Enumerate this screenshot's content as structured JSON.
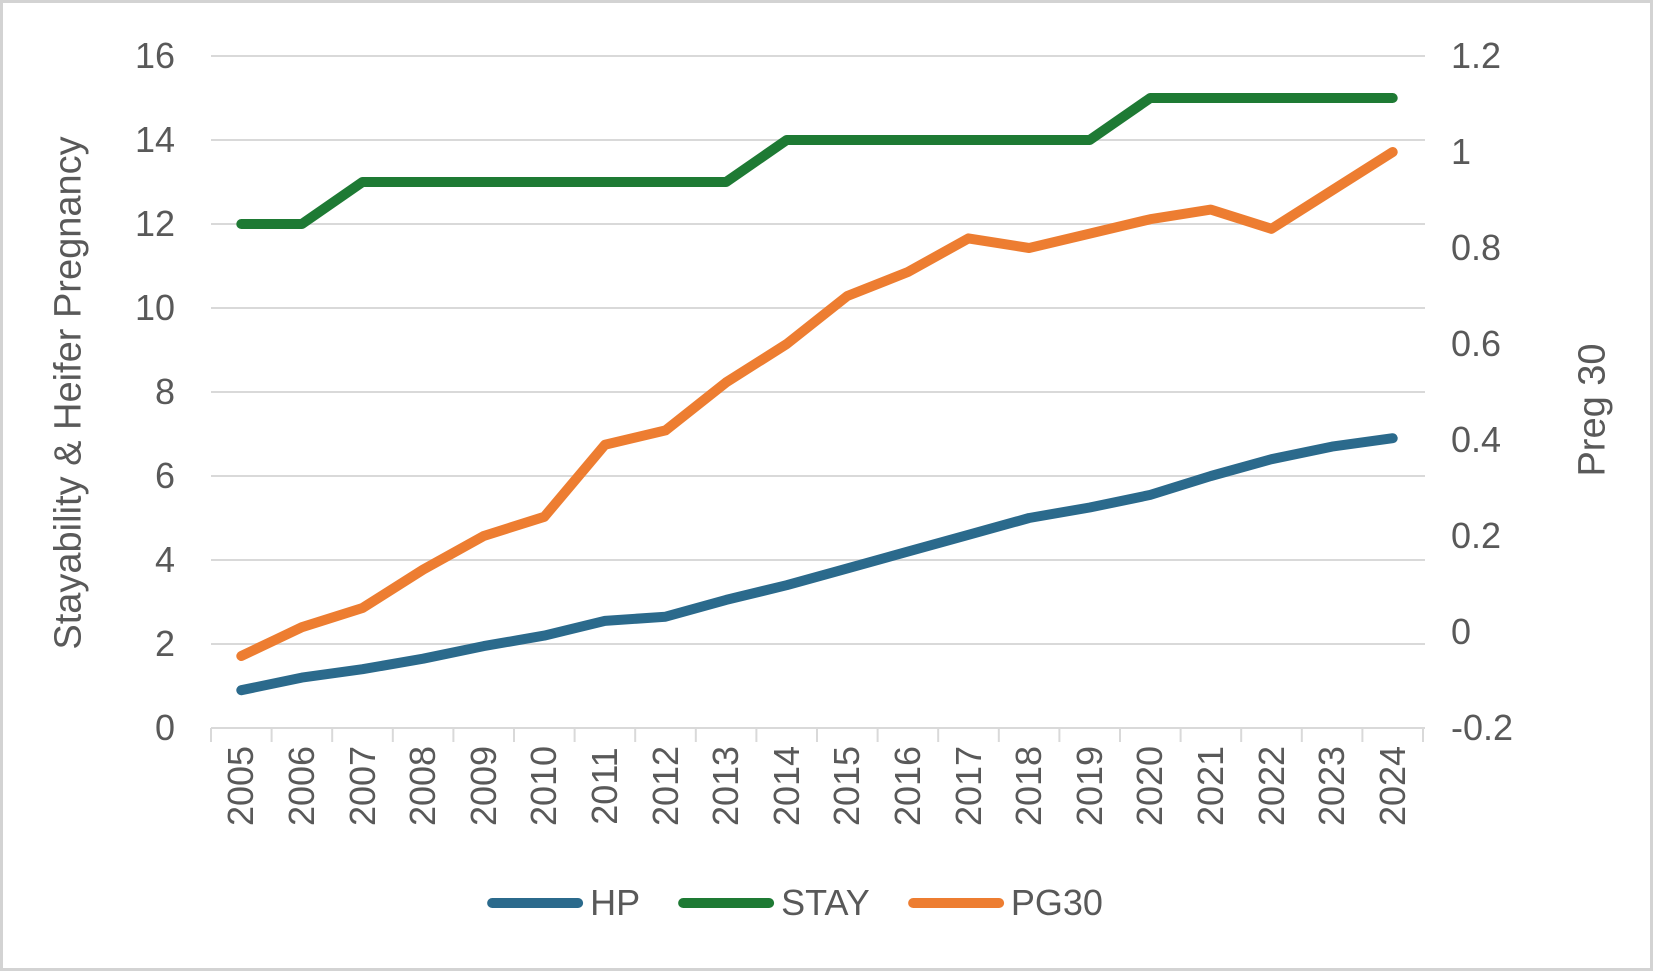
{
  "chart_data": {
    "type": "line",
    "title": "",
    "categories": [
      "2005",
      "2006",
      "2007",
      "2008",
      "2009",
      "2010",
      "2011",
      "2012",
      "2013",
      "2014",
      "2015",
      "2016",
      "2017",
      "2018",
      "2019",
      "2020",
      "2021",
      "2022",
      "2023",
      "2024"
    ],
    "series": [
      {
        "name": "HP",
        "yaxis": "left",
        "color": "#2B6A8C",
        "values": [
          0.9,
          1.2,
          1.4,
          1.65,
          1.95,
          2.2,
          2.55,
          2.65,
          3.05,
          3.4,
          3.8,
          4.2,
          4.6,
          5.0,
          5.25,
          5.55,
          6.0,
          6.4,
          6.7,
          6.9
        ]
      },
      {
        "name": "STAY",
        "yaxis": "left",
        "color": "#1E7A34",
        "values": [
          12,
          12,
          13,
          13,
          13,
          13,
          13,
          13,
          13,
          14,
          14,
          14,
          14,
          14,
          14,
          15,
          15,
          15,
          15,
          15
        ]
      },
      {
        "name": "PG30",
        "yaxis": "right",
        "color": "#ED7D31",
        "values": [
          -0.05,
          0.01,
          0.05,
          0.13,
          0.2,
          0.24,
          0.39,
          0.42,
          0.52,
          0.6,
          0.7,
          0.75,
          0.82,
          0.8,
          0.83,
          0.86,
          0.88,
          0.84,
          0.92,
          1.0
        ]
      }
    ],
    "left_axis": {
      "title": "Stayability & Heifer Pregnancy",
      "min": 0,
      "max": 16,
      "tick_labels": [
        "16",
        "14",
        "12",
        "10",
        "8",
        "6",
        "4",
        "2",
        "0"
      ]
    },
    "right_axis": {
      "title": "Preg 30",
      "min": -0.2,
      "max": 1.2,
      "tick_labels": [
        "1.2",
        "1",
        "0.8",
        "0.6",
        "0.4",
        "0.2",
        "0",
        "-0.2"
      ]
    },
    "grid": true,
    "legend_position": "bottom",
    "legend": [
      "HP",
      "STAY",
      "PG30"
    ]
  },
  "colors": {
    "axis_text": "#595959",
    "gridline": "#D9D9D9",
    "frame_border": "#D3D3D3",
    "background": "#FFFFFF"
  }
}
